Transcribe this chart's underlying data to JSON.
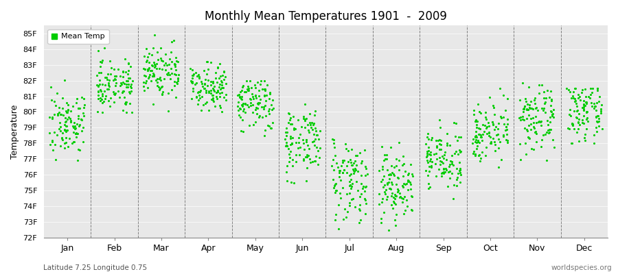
{
  "title": "Monthly Mean Temperatures 1901  -  2009",
  "ylabel": "Temperature",
  "xlabel_labels": [
    "Jan",
    "Feb",
    "Mar",
    "Apr",
    "May",
    "Jun",
    "Jul",
    "Aug",
    "Sep",
    "Oct",
    "Nov",
    "Dec"
  ],
  "footer_left": "Latitude 7.25 Longitude 0.75",
  "footer_right": "worldspecies.org",
  "legend_label": "Mean Temp",
  "dot_color": "#00cc00",
  "bg_color": "#e8e8e8",
  "ylim": [
    72,
    85.5
  ],
  "ytick_labels": [
    "72F",
    "73F",
    "74F",
    "75F",
    "76F",
    "77F",
    "78F",
    "79F",
    "80F",
    "81F",
    "82F",
    "83F",
    "84F",
    "85F"
  ],
  "ytick_values": [
    72,
    73,
    74,
    75,
    76,
    77,
    78,
    79,
    80,
    81,
    82,
    83,
    84,
    85
  ],
  "monthly_means": [
    79.3,
    81.8,
    82.6,
    81.7,
    80.5,
    78.2,
    75.8,
    75.3,
    77.0,
    78.8,
    79.5,
    80.0
  ],
  "monthly_stds": [
    1.0,
    0.8,
    0.9,
    0.7,
    0.9,
    1.1,
    1.3,
    1.2,
    0.9,
    0.9,
    1.0,
    0.9
  ],
  "monthly_mins": [
    76.0,
    79.5,
    80.0,
    80.0,
    78.0,
    75.5,
    72.0,
    72.0,
    74.5,
    76.5,
    76.5,
    78.0
  ],
  "monthly_maxs": [
    82.5,
    84.5,
    84.9,
    83.5,
    82.0,
    80.5,
    78.5,
    78.5,
    79.5,
    81.5,
    82.0,
    81.5
  ],
  "n_years": 109,
  "seed": 7
}
